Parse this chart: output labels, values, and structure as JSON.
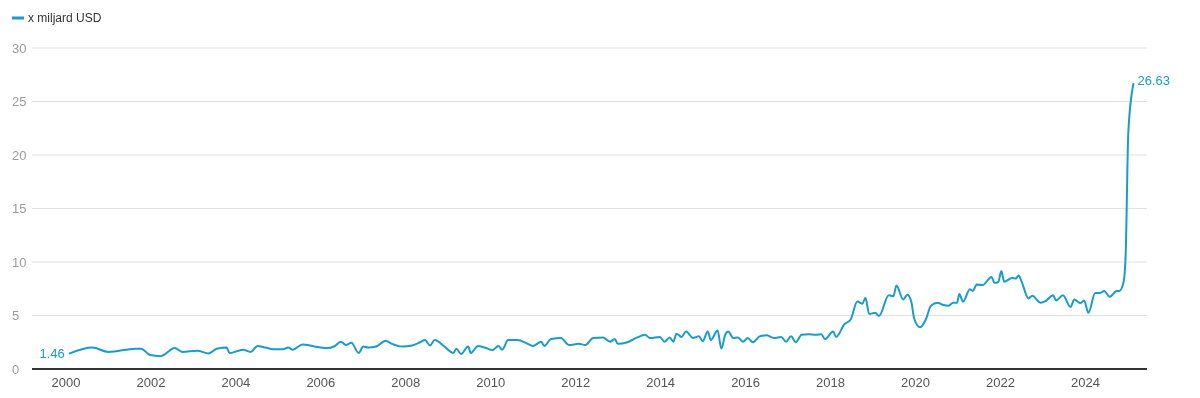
{
  "chart_data": {
    "type": "line",
    "legend": "top left",
    "grid": "y",
    "marker": "none",
    "line_style": "solid",
    "xlim": [
      1999.2,
      2025.45
    ],
    "xticks": [
      2000,
      2002,
      2004,
      2006,
      2008,
      2010,
      2012,
      2014,
      2016,
      2018,
      2020,
      2022,
      2024
    ],
    "ylim": [
      0,
      30
    ],
    "yticks": [
      0,
      5,
      10,
      15,
      20,
      25,
      30
    ],
    "annotations": [
      {
        "text": "1.46",
        "x": 2000.09,
        "y": 1.46
      },
      {
        "text": "26.63",
        "x": 2025.13,
        "y": 26.63
      }
    ],
    "series": [
      {
        "name": "x miljard USD",
        "color": "#1a9bc9",
        "x": [
          2000.09,
          2000.62,
          2001.0,
          2001.64,
          2001.77,
          2001.98,
          2002.23,
          2002.56,
          2002.74,
          2003.09,
          2003.36,
          2003.55,
          2003.78,
          2003.85,
          2004.17,
          2004.35,
          2004.51,
          2004.7,
          2004.88,
          2005.11,
          2005.23,
          2005.34,
          2005.57,
          2005.85,
          2006.13,
          2006.31,
          2006.47,
          2006.59,
          2006.72,
          2006.89,
          2007.0,
          2007.12,
          2007.3,
          2007.53,
          2007.65,
          2007.92,
          2008.15,
          2008.34,
          2008.45,
          2008.57,
          2008.68,
          2008.91,
          2009.12,
          2009.19,
          2009.3,
          2009.47,
          2009.53,
          2009.7,
          2009.93,
          2010.04,
          2010.18,
          2010.27,
          2010.41,
          2010.62,
          2010.85,
          2010.99,
          2011.19,
          2011.26,
          2011.42,
          2011.65,
          2011.84,
          2012.07,
          2012.23,
          2012.41,
          2012.64,
          2012.81,
          2012.92,
          2012.99,
          2013.22,
          2013.45,
          2013.63,
          2013.75,
          2013.98,
          2014.09,
          2014.21,
          2014.3,
          2014.37,
          2014.49,
          2014.6,
          2014.76,
          2014.9,
          2014.99,
          2015.11,
          2015.18,
          2015.34,
          2015.43,
          2015.52,
          2015.59,
          2015.71,
          2015.82,
          2015.94,
          2016.05,
          2016.17,
          2016.33,
          2016.49,
          2016.67,
          2016.84,
          2016.95,
          2017.07,
          2017.18,
          2017.32,
          2017.48,
          2017.66,
          2017.78,
          2017.87,
          2018.06,
          2018.13,
          2018.33,
          2018.47,
          2018.63,
          2018.75,
          2018.82,
          2018.91,
          2019.05,
          2019.14,
          2019.37,
          2019.48,
          2019.55,
          2019.71,
          2019.81,
          2019.9,
          2019.97,
          2020.11,
          2020.25,
          2020.36,
          2020.52,
          2020.64,
          2020.77,
          2020.89,
          2020.98,
          2021.03,
          2021.12,
          2021.28,
          2021.35,
          2021.44,
          2021.58,
          2021.79,
          2021.86,
          2021.95,
          2022.02,
          2022.09,
          2022.27,
          2022.36,
          2022.43,
          2022.5,
          2022.66,
          2022.75,
          2022.94,
          2023.08,
          2023.24,
          2023.31,
          2023.47,
          2023.65,
          2023.74,
          2023.88,
          2023.97,
          2024.07,
          2024.23,
          2024.34,
          2024.44,
          2024.57,
          2024.74,
          2024.8,
          2024.9,
          2024.95,
          2025.01,
          2025.13
        ],
        "values": [
          1.46,
          2.0,
          1.6,
          1.9,
          1.9,
          1.3,
          1.2,
          1.96,
          1.6,
          1.7,
          1.46,
          1.9,
          2.0,
          1.5,
          1.8,
          1.6,
          2.15,
          2.0,
          1.85,
          1.85,
          2.0,
          1.8,
          2.3,
          2.1,
          1.95,
          2.1,
          2.55,
          2.25,
          2.45,
          1.5,
          2.1,
          2.0,
          2.1,
          2.65,
          2.4,
          2.1,
          2.2,
          2.5,
          2.7,
          2.2,
          2.7,
          2.1,
          1.5,
          1.9,
          1.4,
          2.1,
          1.5,
          2.15,
          1.9,
          1.75,
          2.15,
          1.8,
          2.7,
          2.7,
          2.4,
          2.15,
          2.55,
          2.15,
          2.8,
          2.9,
          2.25,
          2.35,
          2.25,
          2.9,
          2.95,
          2.55,
          2.8,
          2.35,
          2.5,
          2.95,
          3.2,
          2.9,
          3.0,
          2.55,
          2.95,
          2.55,
          3.3,
          3.0,
          3.5,
          2.9,
          3.05,
          2.6,
          3.5,
          2.7,
          3.6,
          1.9,
          3.2,
          3.5,
          2.9,
          2.95,
          2.55,
          2.9,
          2.5,
          3.05,
          3.15,
          2.9,
          3.0,
          2.55,
          3.05,
          2.5,
          3.2,
          3.25,
          3.2,
          3.25,
          2.8,
          3.5,
          3.0,
          4.2,
          4.6,
          6.3,
          6.1,
          6.65,
          5.15,
          5.25,
          4.95,
          6.9,
          6.8,
          7.8,
          6.5,
          6.95,
          6.3,
          4.7,
          3.9,
          4.7,
          5.9,
          6.2,
          6.0,
          5.9,
          6.2,
          6.2,
          7.0,
          6.3,
          7.45,
          7.3,
          7.9,
          7.85,
          8.6,
          8.05,
          8.15,
          9.15,
          8.15,
          8.5,
          8.45,
          8.75,
          8.15,
          6.6,
          6.85,
          6.2,
          6.4,
          6.9,
          6.4,
          6.9,
          5.8,
          6.5,
          6.15,
          6.4,
          5.25,
          7.1,
          7.1,
          7.3,
          6.75,
          7.3,
          7.3,
          8.15,
          11.0,
          22.1,
          26.63
        ]
      }
    ]
  }
}
